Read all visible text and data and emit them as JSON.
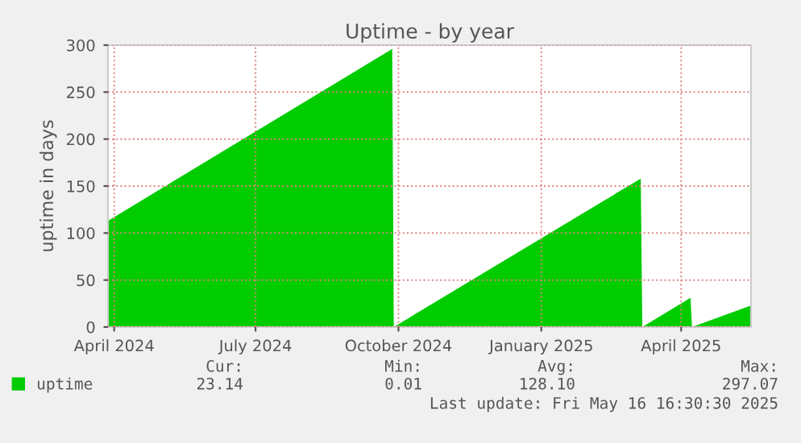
{
  "chart_data": {
    "type": "area",
    "title": "Uptime - by year",
    "ylabel": "uptime in days",
    "x": [
      "2024-03-28",
      "2024-09-27",
      "2024-09-28",
      "2025-03-06",
      "2025-03-07",
      "2025-04-07",
      "2025-04-08",
      "2025-05-16"
    ],
    "series": [
      {
        "name": "uptime",
        "color": "#00cc00",
        "values": [
          113,
          296,
          0,
          158,
          0,
          31,
          0,
          23
        ]
      }
    ],
    "xlim": [
      "2024-03-28",
      "2025-05-16"
    ],
    "xticks": [
      {
        "value": "2024-04-01",
        "label": "April 2024"
      },
      {
        "value": "2024-07-01",
        "label": "July 2024"
      },
      {
        "value": "2024-10-01",
        "label": "October 2024"
      },
      {
        "value": "2025-01-01",
        "label": "January 2025"
      },
      {
        "value": "2025-04-01",
        "label": "April 2025"
      }
    ],
    "ylim": [
      0,
      300
    ],
    "yticks": [
      0,
      50,
      100,
      150,
      200,
      250,
      300
    ],
    "grid": true,
    "legend": "bottom left",
    "annotations": [
      "Cur:",
      "Min:",
      "Avg:",
      "Max:",
      "23.14",
      "0.01",
      "128.10",
      "297.07",
      "Last update: Fri May 16 16:30:30 2025"
    ]
  }
}
